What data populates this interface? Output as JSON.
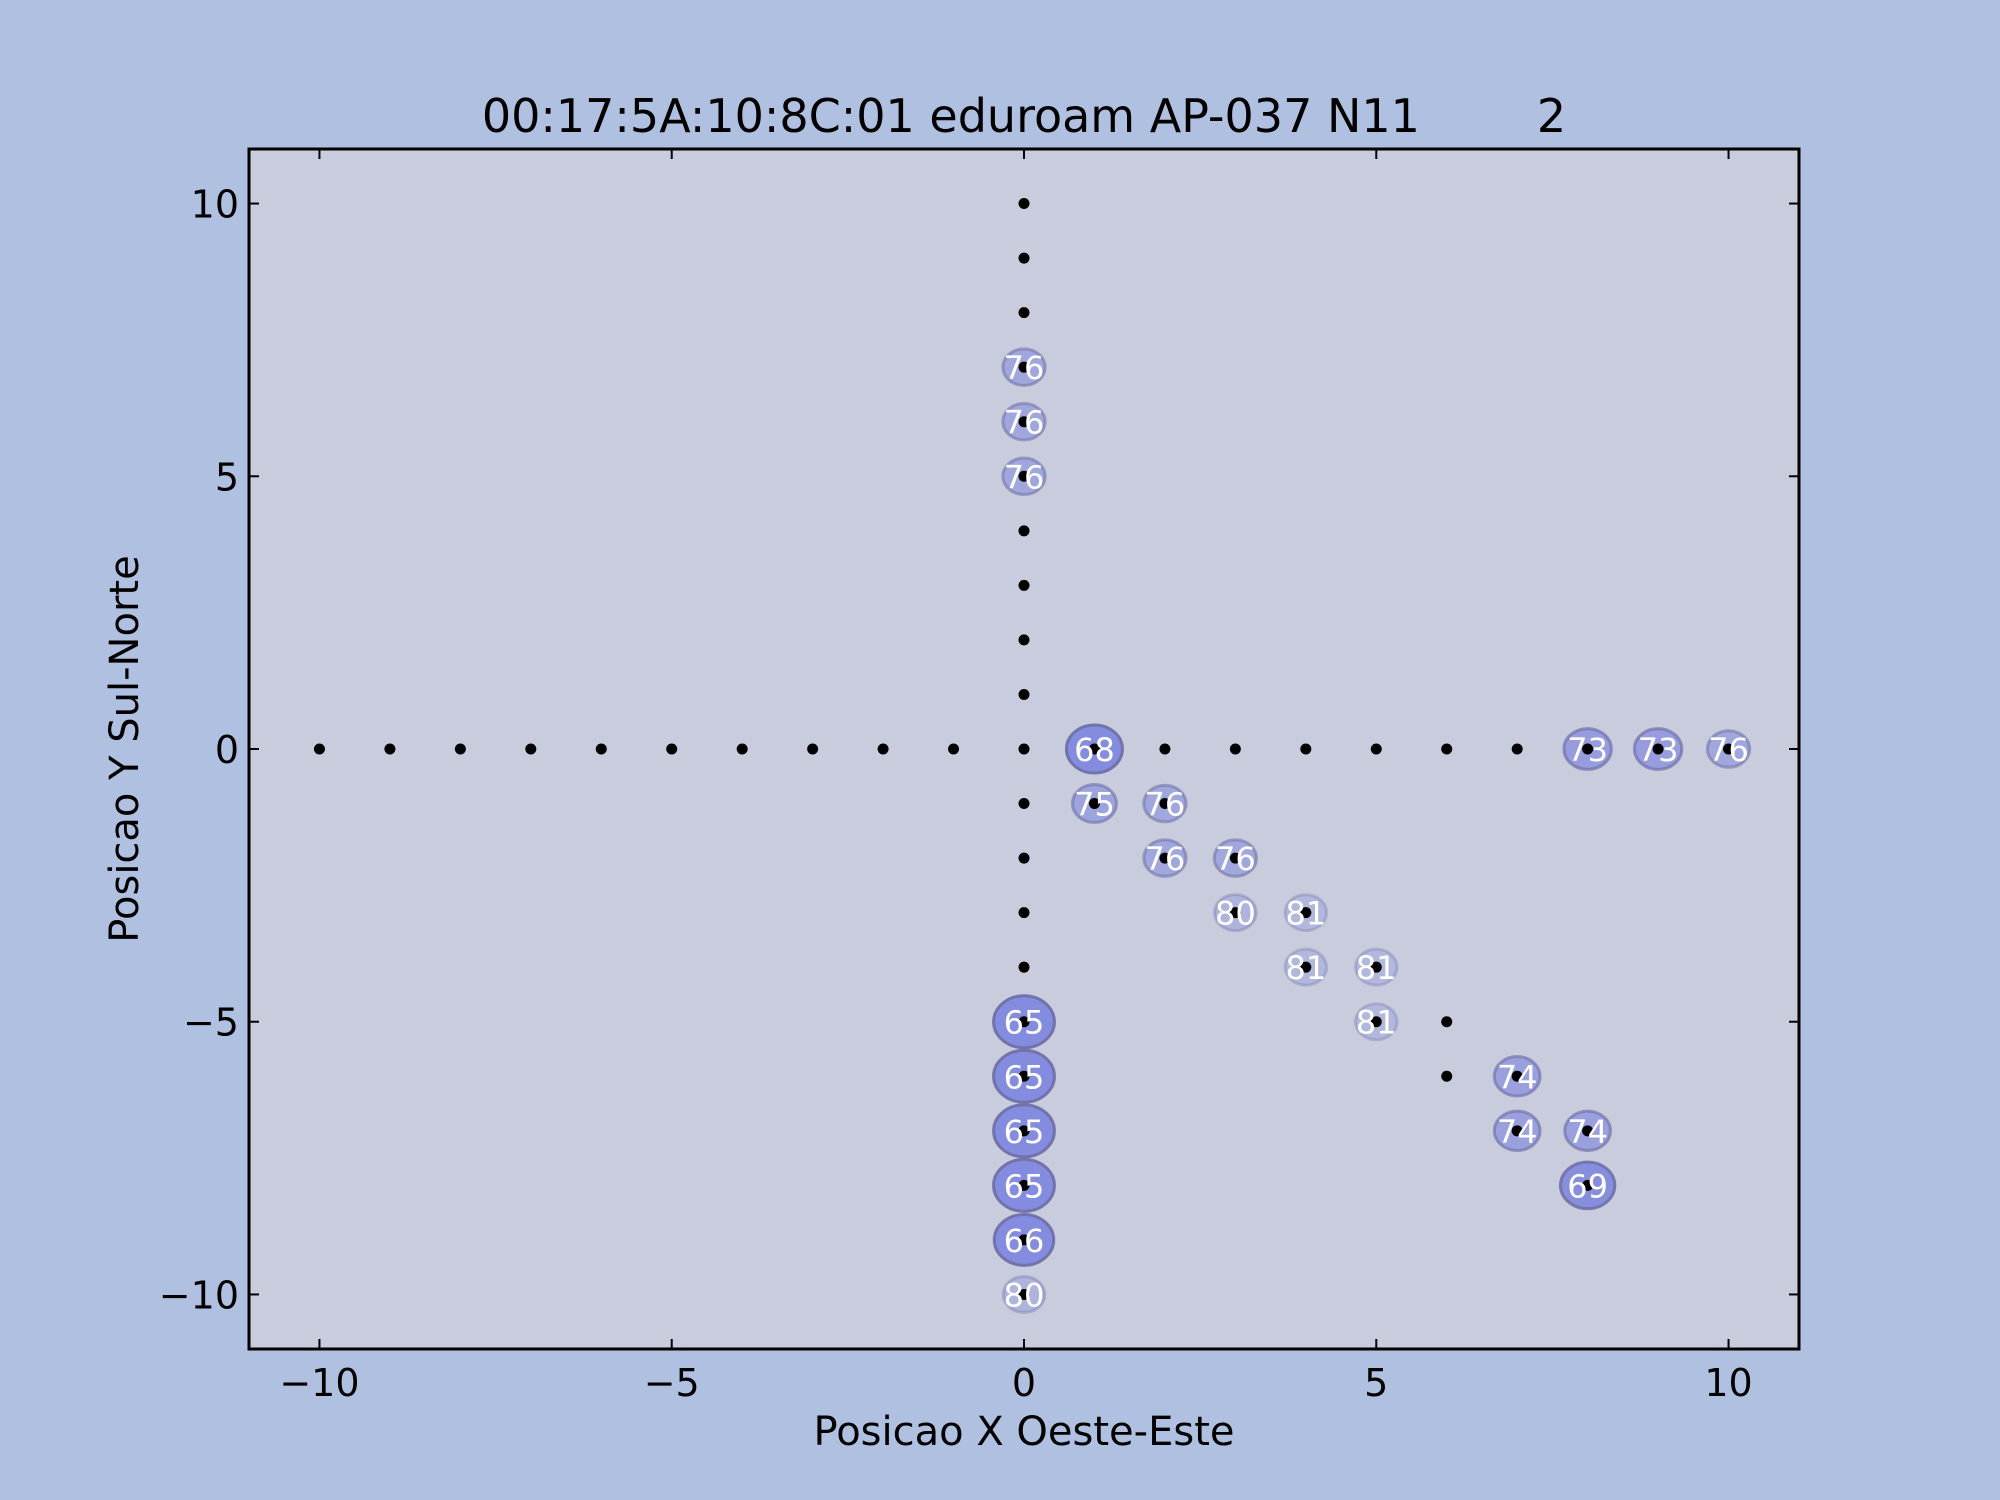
{
  "chart_data": {
    "type": "scatter",
    "title": "00:17:5A:10:8C:01 eduroam AP-037 N11        2",
    "xlabel": "Posicao X Oeste-Este",
    "ylabel": "Posicao Y Sul-Norte",
    "xlim": [
      -11,
      11
    ],
    "ylim": [
      -11,
      11
    ],
    "xticks": [
      -10,
      -5,
      0,
      5,
      10
    ],
    "yticks": [
      -10,
      -5,
      0,
      5,
      10
    ],
    "xtick_labels": [
      "−10",
      "−5",
      "0",
      "5",
      "10"
    ],
    "ytick_labels": [
      "−10",
      "−5",
      "0",
      "5",
      "10"
    ],
    "grid": false,
    "colors": {
      "figure_bg": "#b0c0e0",
      "plot_bg": "#c8ccdc",
      "point": "#000000",
      "ellipse_fill": "#8088dd",
      "ellipse_stroke": "#7070a8",
      "label": "#ffffff"
    },
    "points": [
      {
        "x": -10,
        "y": 0
      },
      {
        "x": -9,
        "y": 0
      },
      {
        "x": -8,
        "y": 0
      },
      {
        "x": -7,
        "y": 0
      },
      {
        "x": -6,
        "y": 0
      },
      {
        "x": -5,
        "y": 0
      },
      {
        "x": -4,
        "y": 0
      },
      {
        "x": -3,
        "y": 0
      },
      {
        "x": -2,
        "y": 0
      },
      {
        "x": -1,
        "y": 0
      },
      {
        "x": 0,
        "y": 0
      },
      {
        "x": 1,
        "y": 0,
        "value": "68"
      },
      {
        "x": 2,
        "y": 0
      },
      {
        "x": 3,
        "y": 0
      },
      {
        "x": 4,
        "y": 0
      },
      {
        "x": 5,
        "y": 0
      },
      {
        "x": 6,
        "y": 0
      },
      {
        "x": 7,
        "y": 0
      },
      {
        "x": 8,
        "y": 0,
        "value": "73"
      },
      {
        "x": 9,
        "y": 0,
        "value": "73"
      },
      {
        "x": 10,
        "y": 0,
        "value": "76"
      },
      {
        "x": 0,
        "y": 10
      },
      {
        "x": 0,
        "y": 9
      },
      {
        "x": 0,
        "y": 8
      },
      {
        "x": 0,
        "y": 7,
        "value": "76"
      },
      {
        "x": 0,
        "y": 6,
        "value": "76"
      },
      {
        "x": 0,
        "y": 5,
        "value": "76"
      },
      {
        "x": 0,
        "y": 4
      },
      {
        "x": 0,
        "y": 3
      },
      {
        "x": 0,
        "y": 2
      },
      {
        "x": 0,
        "y": 1
      },
      {
        "x": 0,
        "y": -1
      },
      {
        "x": 0,
        "y": -2
      },
      {
        "x": 0,
        "y": -3
      },
      {
        "x": 0,
        "y": -4
      },
      {
        "x": 0,
        "y": -5,
        "value": "65"
      },
      {
        "x": 0,
        "y": -6,
        "value": "65"
      },
      {
        "x": 0,
        "y": -7,
        "value": "65"
      },
      {
        "x": 0,
        "y": -8,
        "value": "65"
      },
      {
        "x": 0,
        "y": -9,
        "value": "66"
      },
      {
        "x": 0,
        "y": -10,
        "value": "80"
      },
      {
        "x": 1,
        "y": -1,
        "value": "75"
      },
      {
        "x": 2,
        "y": -1,
        "value": "76"
      },
      {
        "x": 2,
        "y": -2,
        "value": "76"
      },
      {
        "x": 3,
        "y": -2,
        "value": "76"
      },
      {
        "x": 3,
        "y": -3,
        "value": "80"
      },
      {
        "x": 4,
        "y": -3,
        "value": "81"
      },
      {
        "x": 4,
        "y": -4,
        "value": "81"
      },
      {
        "x": 5,
        "y": -4,
        "value": "81"
      },
      {
        "x": 5,
        "y": -5,
        "value": "81"
      },
      {
        "x": 6,
        "y": -5
      },
      {
        "x": 6,
        "y": -6
      },
      {
        "x": 7,
        "y": -6,
        "value": "74"
      },
      {
        "x": 7,
        "y": -7,
        "value": "74"
      },
      {
        "x": 8,
        "y": -7,
        "value": "74"
      },
      {
        "x": 8,
        "y": -8,
        "value": "69"
      }
    ]
  }
}
